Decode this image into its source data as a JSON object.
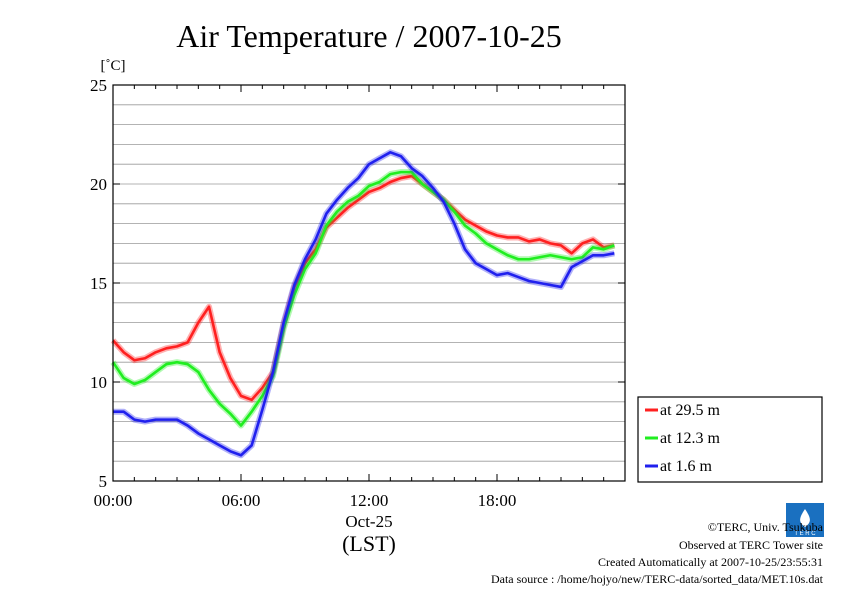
{
  "chart_data": {
    "type": "line",
    "title": "Air Temperature / 2007-10-25",
    "ylabel": "[˚C]",
    "x_date_label": "Oct-25",
    "x_timezone_label": "(LST)",
    "xlim": [
      0,
      24
    ],
    "ylim": [
      5,
      25
    ],
    "x_ticks": [
      0,
      6,
      12,
      18
    ],
    "x_tick_labels": [
      "00:00",
      "06:00",
      "12:00",
      "18:00"
    ],
    "y_ticks": [
      5,
      10,
      15,
      20,
      25
    ],
    "y_tick_labels": [
      "5",
      "10",
      "15",
      "20",
      "25"
    ],
    "grid": true,
    "legend_position": "bottom-right, outside plot",
    "x": [
      0,
      0.5,
      1,
      1.5,
      2,
      2.5,
      3,
      3.5,
      4,
      4.5,
      5,
      5.5,
      6,
      6.5,
      7,
      7.5,
      8,
      8.5,
      9,
      9.5,
      10,
      10.5,
      11,
      11.5,
      12,
      12.5,
      13,
      13.5,
      14,
      14.5,
      15,
      15.5,
      16,
      16.5,
      17,
      17.5,
      18,
      18.5,
      19,
      19.5,
      20,
      20.5,
      21,
      21.5,
      22,
      22.5,
      23,
      23.5
    ],
    "series": [
      {
        "name": "at 29.5 m",
        "color": "#ff2020",
        "values": [
          12.1,
          11.5,
          11.1,
          11.2,
          11.5,
          11.7,
          11.8,
          12.0,
          13.0,
          13.8,
          11.5,
          10.2,
          9.3,
          9.1,
          9.7,
          10.5,
          12.9,
          14.8,
          16.0,
          16.7,
          17.8,
          18.3,
          18.8,
          19.2,
          19.6,
          19.8,
          20.1,
          20.3,
          20.4,
          20.0,
          19.6,
          19.2,
          18.7,
          18.2,
          17.9,
          17.6,
          17.4,
          17.3,
          17.3,
          17.1,
          17.2,
          17.0,
          16.9,
          16.5,
          17.0,
          17.2,
          16.8,
          16.9
        ]
      },
      {
        "name": "at 12.3 m",
        "color": "#20ee20",
        "values": [
          11.0,
          10.2,
          9.9,
          10.1,
          10.5,
          10.9,
          11.0,
          10.9,
          10.5,
          9.6,
          8.9,
          8.4,
          7.8,
          8.5,
          9.3,
          10.3,
          12.7,
          14.4,
          15.7,
          16.5,
          17.9,
          18.6,
          19.1,
          19.4,
          19.9,
          20.1,
          20.5,
          20.6,
          20.6,
          20.0,
          19.6,
          19.2,
          18.6,
          17.9,
          17.5,
          17.0,
          16.7,
          16.4,
          16.2,
          16.2,
          16.3,
          16.4,
          16.3,
          16.2,
          16.3,
          16.8,
          16.7,
          16.9
        ]
      },
      {
        "name": "at 1.6 m",
        "color": "#2020ee",
        "values": [
          8.5,
          8.5,
          8.1,
          8.0,
          8.1,
          8.1,
          8.1,
          7.8,
          7.4,
          7.1,
          6.8,
          6.5,
          6.3,
          6.8,
          8.6,
          10.5,
          13.0,
          14.9,
          16.2,
          17.2,
          18.5,
          19.2,
          19.8,
          20.3,
          21.0,
          21.3,
          21.6,
          21.4,
          20.8,
          20.4,
          19.8,
          19.1,
          18.0,
          16.7,
          16.0,
          15.7,
          15.4,
          15.5,
          15.3,
          15.1,
          15.0,
          14.9,
          14.8,
          15.8,
          16.1,
          16.4,
          16.4,
          16.5
        ]
      }
    ]
  },
  "credits": {
    "copyright": "©TERC, Univ. Tsukuba",
    "site": "Observed at TERC Tower site",
    "created": "Created Automatically at 2007-10-25/23:55:31",
    "source": "Data source : /home/hojyo/new/TERC-data/sorted_data/MET.10s.dat",
    "logo_text": "T E R C"
  }
}
